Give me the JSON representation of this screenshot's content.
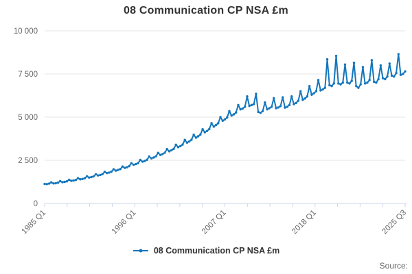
{
  "header": {
    "title": "08 Communication CP NSA £m"
  },
  "legend": {
    "label": "08 Communication CP NSA £m"
  },
  "footer": {
    "source_label": "Source:"
  },
  "chart_data": {
    "type": "line",
    "title": "08 Communication CP NSA £m",
    "frequency": "quarterly",
    "x_start": "1985 Q1",
    "x_end": "2025 Q3",
    "x_tick_labels": [
      "1985 Q1",
      "1996 Q1",
      "2007 Q1",
      "2018 Q1",
      "2025 Q3"
    ],
    "y_ticks": [
      0,
      2500,
      5000,
      7500,
      10000
    ],
    "y_tick_labels": [
      "0",
      "2 500",
      "5 000",
      "7 500",
      "10 000"
    ],
    "ylim": [
      0,
      10000
    ],
    "grid": "horizontal",
    "legend_position": "bottom",
    "colors": {
      "line": "#1476bc",
      "grid": "#e6e6e6",
      "axis": "#ccd6eb",
      "label": "#666666",
      "title": "#333333"
    },
    "series": [
      {
        "name": "08 Communication CP NSA £m",
        "color": "#1476bc",
        "values": [
          1130,
          1120,
          1150,
          1220,
          1160,
          1170,
          1200,
          1290,
          1230,
          1250,
          1280,
          1370,
          1310,
          1330,
          1360,
          1460,
          1400,
          1420,
          1460,
          1570,
          1500,
          1530,
          1570,
          1690,
          1620,
          1650,
          1700,
          1830,
          1760,
          1790,
          1840,
          1980,
          1900,
          1940,
          1990,
          2140,
          2060,
          2100,
          2160,
          2330,
          2240,
          2280,
          2340,
          2520,
          2420,
          2460,
          2530,
          2720,
          2610,
          2660,
          2730,
          2930,
          2810,
          2860,
          2940,
          3150,
          3020,
          3080,
          3160,
          3400,
          3260,
          3320,
          3410,
          3680,
          3520,
          3590,
          3690,
          3980,
          3810,
          3890,
          3990,
          4300,
          4120,
          4200,
          4310,
          4650,
          4450,
          4540,
          4650,
          5000,
          4790,
          4870,
          4980,
          5350,
          5090,
          5160,
          5270,
          5700,
          5450,
          5500,
          5600,
          6200,
          5650,
          5700,
          5750,
          6350,
          5300,
          5250,
          5350,
          5850,
          5450,
          5520,
          5600,
          6100,
          5520,
          5560,
          5640,
          6150,
          5550,
          5600,
          5700,
          6200,
          5750,
          5820,
          5950,
          6500,
          6000,
          6080,
          6200,
          6800,
          6300,
          6380,
          6500,
          7150,
          6550,
          6600,
          6700,
          8350,
          6850,
          6800,
          6950,
          8550,
          6950,
          6900,
          7000,
          8050,
          7000,
          6950,
          7100,
          8150,
          6800,
          6700,
          6900,
          7900,
          6950,
          7000,
          7150,
          8300,
          7050,
          7000,
          7200,
          8000,
          7250,
          7200,
          7350,
          8100,
          7400,
          7350,
          7550,
          8650,
          7450,
          7500,
          7650
        ]
      }
    ]
  }
}
